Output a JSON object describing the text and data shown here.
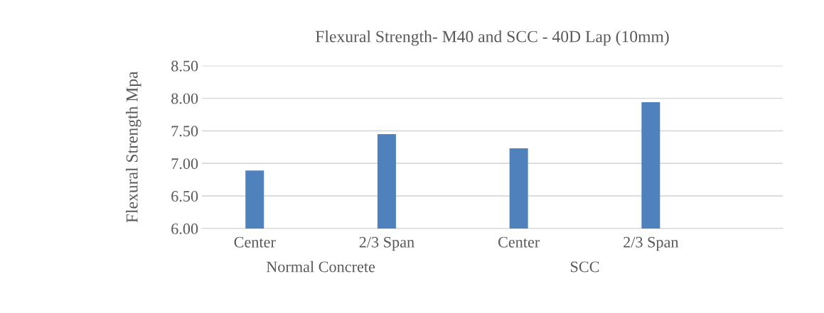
{
  "chart_data": {
    "type": "bar",
    "title": "Flexural Strength- M40 and SCC - 40D Lap (10mm)",
    "ylabel": "Flexural Strength Mpa",
    "categories": [
      "Center",
      "2/3 Span",
      "Center",
      "2/3 Span"
    ],
    "values": [
      6.89,
      7.45,
      7.23,
      7.94
    ],
    "color": "#4f81bd",
    "ylim": [
      6.0,
      8.5
    ],
    "yticks": [
      {
        "value": 6.0,
        "label": "6.00"
      },
      {
        "value": 6.5,
        "label": "6.50"
      },
      {
        "value": 7.0,
        "label": "7.00"
      },
      {
        "value": 7.5,
        "label": "7.50"
      },
      {
        "value": 8.0,
        "label": "8.00"
      },
      {
        "value": 8.5,
        "label": "8.50"
      }
    ],
    "grid": "y",
    "annotations": [
      "Normal Concrete",
      "SCC"
    ]
  }
}
